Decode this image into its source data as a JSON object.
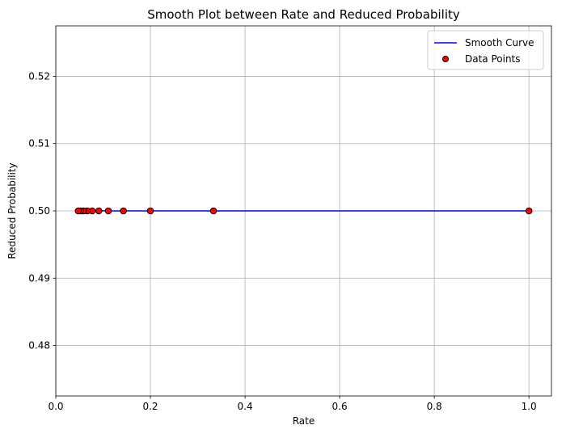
{
  "chart_data": {
    "type": "line",
    "title": "Smooth Plot between Rate and Reduced Probability",
    "xlabel": "Rate",
    "ylabel": "Reduced Probability",
    "xlim": [
      0.0,
      1.0476
    ],
    "ylim": [
      0.4725,
      0.5275
    ],
    "x_ticks": [
      {
        "value": 0.0,
        "label": "0.0"
      },
      {
        "value": 0.2,
        "label": "0.2"
      },
      {
        "value": 0.4,
        "label": "0.4"
      },
      {
        "value": 0.6,
        "label": "0.6"
      },
      {
        "value": 0.8,
        "label": "0.8"
      },
      {
        "value": 1.0,
        "label": "1.0"
      }
    ],
    "y_ticks": [
      {
        "value": 0.48,
        "label": "0.48"
      },
      {
        "value": 0.49,
        "label": "0.49"
      },
      {
        "value": 0.5,
        "label": "0.50"
      },
      {
        "value": 0.51,
        "label": "0.51"
      },
      {
        "value": 0.52,
        "label": "0.52"
      }
    ],
    "grid": true,
    "legend_position": "top-right",
    "series": [
      {
        "name": "Smooth Curve",
        "kind": "line",
        "color": "#0000ff",
        "x": [
          0.0476,
          1.0
        ],
        "y": [
          0.5,
          0.5
        ]
      },
      {
        "name": "Data Points",
        "kind": "scatter",
        "color": "#ff0000",
        "edge_color": "#000000",
        "x": [
          1.0,
          0.3333,
          0.2,
          0.1429,
          0.1111,
          0.0909,
          0.0769,
          0.0667,
          0.0588,
          0.0526,
          0.0476
        ],
        "y": [
          0.5,
          0.5,
          0.5,
          0.5,
          0.5,
          0.5,
          0.5,
          0.5,
          0.5,
          0.5,
          0.5
        ]
      }
    ]
  }
}
